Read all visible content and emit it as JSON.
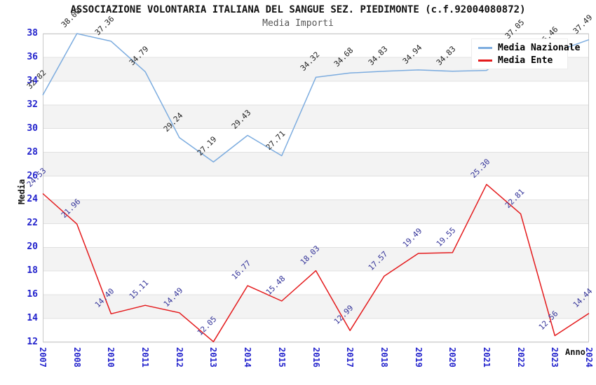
{
  "header": {
    "title": "ASSOCIAZIONE VOLONTARIA ITALIANA DEL SANGUE SEZ. PIEDIMONTE (c.f.92004080872)",
    "subtitle": "Media Importi"
  },
  "colors": {
    "national_line": "#7cacdf",
    "entity_line": "#e41a1c",
    "tick_label": "#2222cc",
    "national_data_label": "#222222",
    "entity_data_label": "#333399",
    "grid_line": "#e0e0e0",
    "band_gray": "#f3f3f3",
    "plot_border": "#c9c9c9"
  },
  "chart_data": {
    "type": "line",
    "title": "ASSOCIAZIONE VOLONTARIA ITALIANA DEL SANGUE SEZ. PIEDIMONTE (c.f.92004080872)",
    "subtitle": "Media Importi",
    "xlabel": "Anno",
    "ylabel": "Media",
    "ylim": [
      12,
      38
    ],
    "ytick_step": 2,
    "yticks": [
      38,
      36,
      34,
      32,
      30,
      28,
      26,
      24,
      22,
      20,
      18,
      16,
      14,
      12
    ],
    "grid": "horizontal-lines-with-alternating-bands",
    "legend_position": "top-right-overlapping-plot",
    "categories": [
      "2007",
      "2008",
      "2010",
      "2011",
      "2012",
      "2013",
      "2014",
      "2015",
      "2016",
      "2017",
      "2018",
      "2019",
      "2020",
      "2021",
      "2022",
      "2023",
      "2024"
    ],
    "series": [
      {
        "name": "Media Nazionale",
        "color": "#7cacdf",
        "label_color": "#222222",
        "values": [
          32.82,
          38.0,
          37.36,
          34.79,
          29.24,
          27.19,
          29.43,
          27.71,
          34.32,
          34.68,
          34.83,
          34.94,
          34.83,
          34.9,
          37.05,
          36.46,
          37.49
        ],
        "labels": [
          "32.82",
          "38.00",
          "37.36",
          "34.79",
          "29.24",
          "27.19",
          "29.43",
          "27.71",
          "34.32",
          "34.68",
          "34.83",
          "34.94",
          "34.83",
          "",
          "37.05",
          "36.46",
          "37.49"
        ]
      },
      {
        "name": "Media Ente",
        "color": "#e41a1c",
        "label_color": "#333399",
        "values": [
          24.53,
          21.96,
          14.4,
          15.11,
          14.49,
          12.05,
          16.77,
          15.48,
          18.03,
          12.99,
          17.57,
          19.49,
          19.55,
          25.3,
          22.81,
          12.56,
          14.44
        ],
        "labels": [
          "24.53",
          "21.96",
          "14.40",
          "15.11",
          "14.49",
          "12.05",
          "16.77",
          "15.48",
          "18.03",
          "12.99",
          "17.57",
          "19.49",
          "19.55",
          "25.30",
          "22.81",
          "12.56",
          "14.44"
        ]
      }
    ]
  }
}
